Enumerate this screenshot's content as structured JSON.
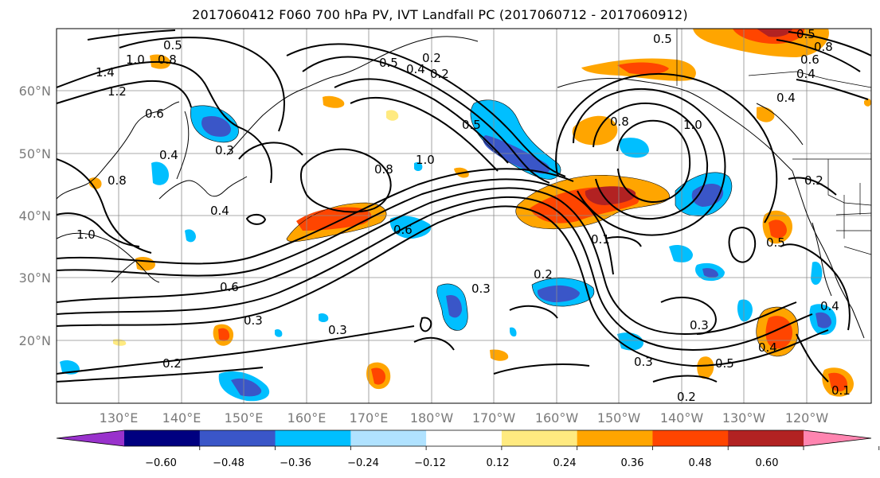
{
  "title": "2017060412 F060 700 hPa PV, IVT Landfall PC (2017060712 - 2017060912)",
  "map": {
    "lat_labels": [
      "60°N",
      "50°N",
      "40°N",
      "30°N",
      "20°N"
    ],
    "lon_labels": [
      "130°E",
      "140°E",
      "150°E",
      "160°E",
      "170°E",
      "180°W",
      "170°W",
      "160°W",
      "150°W",
      "140°W",
      "130°W",
      "120°W"
    ],
    "contour_labels": [
      "0.5",
      "1.0",
      "0.8",
      "1.4",
      "1.2",
      "0.6",
      "0.3",
      "0.4",
      "0.8",
      "0.4",
      "1.0",
      "0.5",
      "0.8",
      "1.0",
      "0.2",
      "0.4",
      "0.2",
      "0.5",
      "0.5",
      "0.8",
      "0.6",
      "0.4",
      "0.5",
      "0.8",
      "1.0",
      "0.4",
      "0.2",
      "0.6",
      "0.1",
      "0.5",
      "0.2",
      "0.3",
      "0.6",
      "0.3",
      "0.3",
      "0.2",
      "0.3",
      "0.3",
      "0.4",
      "0.4",
      "0.5",
      "0.2",
      "0.1"
    ]
  },
  "colorbar": {
    "ticks": [
      "−0.60",
      "−0.48",
      "−0.36",
      "−0.24",
      "−0.12",
      "0.12",
      "0.24",
      "0.36",
      "0.48",
      "0.60"
    ],
    "colors": [
      "#9932cc",
      "#000080",
      "#3a56c8",
      "#00bfff",
      "#b0e2ff",
      "#ffffff",
      "#ffea80",
      "#ffa500",
      "#ff4500",
      "#b22222",
      "#ff85b0"
    ]
  }
}
